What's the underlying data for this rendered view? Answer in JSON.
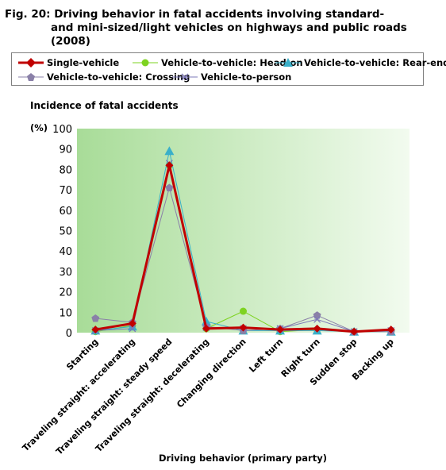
{
  "title_line1": "Fig. 20: Driving behavior in fatal accidents involving standard-",
  "title_line2": "and mini-sized/light vehicles on highways and public roads (2008)",
  "chart_data": {
    "type": "line",
    "ylabel": "Incidence of fatal accidents",
    "yunit": "(%)",
    "xlabel": "Driving behavior (primary party)",
    "ylim": [
      0,
      100
    ],
    "yticks": [
      "0",
      "10",
      "20",
      "30",
      "40",
      "50",
      "60",
      "70",
      "80",
      "90",
      "100"
    ],
    "categories": [
      "Starting",
      "Traveling straight: accelerating",
      "Traveling straight: steady speed",
      "Traveling straight: decelerating",
      "Changing direction",
      "Left turn",
      "Right turn",
      "Sudden stop",
      "Backing up"
    ],
    "legend_position": "top",
    "series": [
      {
        "name": "Single-vehicle",
        "color": "#c00000",
        "marker": "diamond",
        "width": 3,
        "values": [
          1.5,
          4.5,
          82,
          2,
          2.5,
          1.5,
          2,
          0.5,
          1.5
        ]
      },
      {
        "name": "Vehicle-to-vehicle: Head-on",
        "color": "#7ed321",
        "marker": "circle",
        "width": 1,
        "values": [
          0.5,
          3.5,
          82,
          2,
          10.5,
          0.5,
          1.5,
          0.5,
          0.5
        ]
      },
      {
        "name": "Vehicle-to-vehicle: Rear-end",
        "color": "#3ab0c9",
        "marker": "triangle",
        "width": 1,
        "values": [
          1,
          3,
          89,
          5.5,
          1,
          1,
          1,
          0.5,
          0.5
        ]
      },
      {
        "name": "Vehicle-to-vehicle: Crossing",
        "color": "#8a80a8",
        "marker": "pentagon",
        "width": 1,
        "values": [
          7,
          5,
          71,
          3,
          1,
          2,
          8.5,
          0.5,
          0.5
        ]
      },
      {
        "name": "Vehicle-to-person",
        "color": "#7d78b8",
        "marker": "x",
        "width": 1,
        "values": [
          1,
          2,
          83,
          2.5,
          2,
          2,
          6.5,
          0.5,
          1
        ]
      }
    ]
  }
}
